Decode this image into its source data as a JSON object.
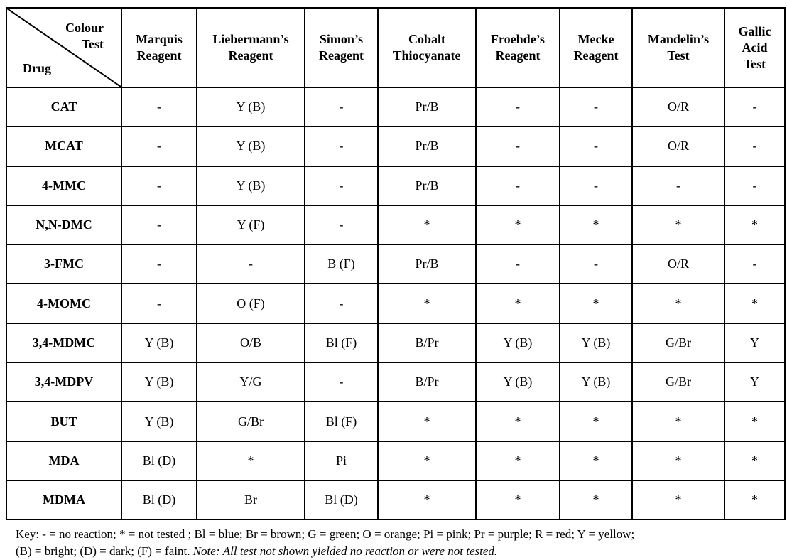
{
  "corner": {
    "top_label_1": "Colour",
    "top_label_2": "Test",
    "bottom_label": "Drug"
  },
  "tests": [
    [
      "Marquis",
      "Reagent"
    ],
    [
      "Liebermann’s",
      "Reagent"
    ],
    [
      "Simon’s",
      "Reagent"
    ],
    [
      "Cobalt",
      "Thiocyanate"
    ],
    [
      "Froehde’s",
      "Reagent"
    ],
    [
      "Mecke",
      "Reagent"
    ],
    [
      "Mandelin’s",
      "Test"
    ],
    [
      "Gallic",
      "Acid",
      "Test"
    ]
  ],
  "rows": [
    {
      "drug": "CAT",
      "results": [
        "-",
        "Y (B)",
        "-",
        "Pr/B",
        "-",
        "-",
        "O/R",
        "-"
      ]
    },
    {
      "drug": "MCAT",
      "results": [
        "-",
        "Y (B)",
        "-",
        "Pr/B",
        "-",
        "-",
        "O/R",
        "-"
      ]
    },
    {
      "drug": "4-MMC",
      "results": [
        "-",
        "Y (B)",
        "-",
        "Pr/B",
        "-",
        "-",
        "-",
        "-"
      ]
    },
    {
      "drug": "N,N-DMC",
      "results": [
        "-",
        "Y (F)",
        "-",
        "*",
        "*",
        "*",
        "*",
        "*"
      ]
    },
    {
      "drug": "3-FMC",
      "results": [
        "-",
        "-",
        "B (F)",
        "Pr/B",
        "-",
        "-",
        "O/R",
        "-"
      ]
    },
    {
      "drug": "4-MOMC",
      "results": [
        "-",
        "O (F)",
        "-",
        "*",
        "*",
        "*",
        "*",
        "*"
      ]
    },
    {
      "drug": "3,4-MDMC",
      "results": [
        "Y (B)",
        "O/B",
        "Bl (F)",
        "B/Pr",
        "Y (B)",
        "Y (B)",
        "G/Br",
        "Y"
      ]
    },
    {
      "drug": "3,4-MDPV",
      "results": [
        "Y (B)",
        "Y/G",
        "-",
        "B/Pr",
        "Y (B)",
        "Y (B)",
        "G/Br",
        "Y"
      ]
    },
    {
      "drug": "BUT",
      "results": [
        "Y (B)",
        "G/Br",
        "Bl (F)",
        "*",
        "*",
        "*",
        "*",
        "*"
      ]
    },
    {
      "drug": "MDA",
      "results": [
        "Bl (D)",
        "*",
        "Pi",
        "*",
        "*",
        "*",
        "*",
        "*"
      ]
    },
    {
      "drug": "MDMA",
      "results": [
        "Bl (D)",
        "Br",
        "Bl (D)",
        "*",
        "*",
        "*",
        "*",
        "*"
      ]
    }
  ],
  "key": {
    "line1": "Key:   - = no reaction; * = not tested ; Bl = blue; Br = brown; G = green; O = orange; Pi = pink; Pr = purple; R = red; Y = yellow;",
    "line2": "(B) = bright; (D) = dark; (F) = faint.",
    "note_label": "Note:",
    "note_text": "All test not shown yielded no reaction or were not tested."
  }
}
